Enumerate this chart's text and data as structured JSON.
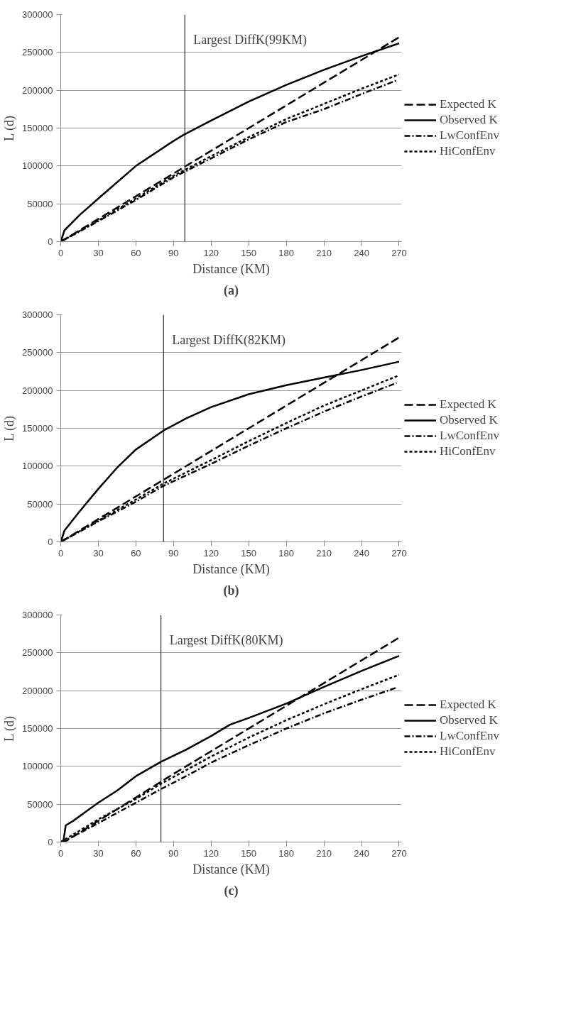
{
  "chart_data": [
    {
      "type": "line",
      "xlabel": "Distance (KM)",
      "ylabel": "L (d)",
      "xlim": [
        0,
        272
      ],
      "ylim": [
        0,
        300000
      ],
      "xticks": [
        0,
        30,
        60,
        90,
        120,
        150,
        180,
        210,
        240,
        270
      ],
      "yticks": [
        0,
        50000,
        100000,
        150000,
        200000,
        250000,
        300000
      ],
      "grid": "y",
      "legend": "right",
      "annotations": [
        "(a)"
      ],
      "ref_lines": [
        {
          "axis": "x",
          "value": 99,
          "label": "Largest DiffK(99KM)",
          "color": "#000000"
        }
      ],
      "series": [
        {
          "name": "Expected K",
          "color": "#000000",
          "line_style": "dashed",
          "x": [
            0,
            90,
            180,
            270
          ],
          "values": [
            0,
            90000,
            180000,
            270000
          ]
        },
        {
          "name": "Observed K",
          "color": "#000000",
          "line_style": "solid",
          "x": [
            0,
            3,
            15,
            30,
            60,
            90,
            99,
            120,
            150,
            180,
            210,
            240,
            270
          ],
          "values": [
            0,
            15000,
            35000,
            57000,
            100000,
            133000,
            142000,
            160000,
            185000,
            207000,
            227000,
            245000,
            262000
          ]
        },
        {
          "name": "LwConfEnv",
          "color": "#000000",
          "line_style": "dashdot",
          "x": [
            0,
            30,
            60,
            90,
            120,
            150,
            180,
            210,
            240,
            268
          ],
          "values": [
            0,
            27000,
            55000,
            85000,
            110000,
            135000,
            158000,
            175000,
            195000,
            213000
          ]
        },
        {
          "name": "HiConfEnv",
          "color": "#000000",
          "line_style": "dotted",
          "x": [
            0,
            30,
            60,
            90,
            120,
            150,
            180,
            210,
            240,
            270
          ],
          "values": [
            0,
            28000,
            57000,
            87000,
            113000,
            138000,
            162000,
            182000,
            202000,
            221000
          ]
        }
      ]
    },
    {
      "type": "line",
      "xlabel": "Distance (KM)",
      "ylabel": "L (d)",
      "xlim": [
        0,
        272
      ],
      "ylim": [
        0,
        300000
      ],
      "xticks": [
        0,
        30,
        60,
        90,
        120,
        150,
        180,
        210,
        240,
        270
      ],
      "yticks": [
        0,
        50000,
        100000,
        150000,
        200000,
        250000,
        300000
      ],
      "grid": "y",
      "legend": "right",
      "annotations": [
        "(b)"
      ],
      "ref_lines": [
        {
          "axis": "x",
          "value": 82,
          "label": "Largest DiffK(82KM)",
          "color": "#000000"
        }
      ],
      "series": [
        {
          "name": "Expected K",
          "color": "#000000",
          "line_style": "dashed",
          "x": [
            0,
            90,
            180,
            270
          ],
          "values": [
            0,
            90000,
            180000,
            270000
          ]
        },
        {
          "name": "Observed K",
          "color": "#000000",
          "line_style": "solid",
          "x": [
            0,
            3,
            15,
            30,
            45,
            60,
            82,
            100,
            120,
            150,
            180,
            210,
            240,
            270
          ],
          "values": [
            0,
            15000,
            40000,
            70000,
            98000,
            122000,
            147000,
            163000,
            178000,
            195000,
            207000,
            217000,
            227000,
            238000
          ]
        },
        {
          "name": "LwConfEnv",
          "color": "#000000",
          "line_style": "dashdot",
          "x": [
            0,
            30,
            60,
            82,
            120,
            150,
            180,
            210,
            240,
            268
          ],
          "values": [
            0,
            27000,
            53000,
            74000,
            103000,
            127000,
            150000,
            172000,
            192000,
            210000
          ]
        },
        {
          "name": "HiConfEnv",
          "color": "#000000",
          "line_style": "dotted",
          "x": [
            0,
            30,
            60,
            82,
            120,
            150,
            180,
            210,
            240,
            270
          ],
          "values": [
            0,
            28000,
            56000,
            77000,
            108000,
            133000,
            157000,
            180000,
            200000,
            220000
          ]
        }
      ]
    },
    {
      "type": "line",
      "xlabel": "Distance (KM)",
      "ylabel": "L (d)",
      "xlim": [
        0,
        272
      ],
      "ylim": [
        0,
        300000
      ],
      "xticks": [
        0,
        30,
        60,
        90,
        120,
        150,
        180,
        210,
        240,
        270
      ],
      "yticks": [
        0,
        50000,
        100000,
        150000,
        200000,
        250000,
        300000
      ],
      "grid": "y",
      "legend": "right",
      "annotations": [
        "(c)"
      ],
      "ref_lines": [
        {
          "axis": "x",
          "value": 80,
          "label": "Largest DiffK(80KM)",
          "color": "#000000"
        }
      ],
      "series": [
        {
          "name": "Expected K",
          "color": "#000000",
          "line_style": "dashed",
          "x": [
            0,
            3,
            90,
            180,
            270
          ],
          "values": [
            0,
            0,
            90000,
            180000,
            270000
          ]
        },
        {
          "name": "Observed K",
          "color": "#000000",
          "line_style": "solid",
          "x": [
            0,
            2,
            4,
            10,
            20,
            30,
            45,
            60,
            80,
            100,
            120,
            135,
            150,
            180,
            210,
            240,
            270
          ],
          "values": [
            0,
            0,
            22000,
            28000,
            40000,
            52000,
            68000,
            87000,
            106000,
            122000,
            140000,
            155000,
            164000,
            183000,
            205000,
            226000,
            246000
          ]
        },
        {
          "name": "LwConfEnv",
          "color": "#000000",
          "line_style": "dashdot",
          "x": [
            0,
            5,
            30,
            60,
            80,
            100,
            120,
            150,
            180,
            210,
            240,
            268
          ],
          "values": [
            0,
            3000,
            25000,
            52000,
            70000,
            87000,
            105000,
            128000,
            150000,
            170000,
            188000,
            204000
          ]
        },
        {
          "name": "HiConfEnv",
          "color": "#000000",
          "line_style": "dotted",
          "x": [
            0,
            5,
            30,
            60,
            80,
            100,
            120,
            150,
            180,
            210,
            240,
            270
          ],
          "values": [
            0,
            5000,
            30000,
            57000,
            77000,
            95000,
            113000,
            138000,
            161000,
            182000,
            202000,
            221000
          ]
        }
      ]
    }
  ]
}
